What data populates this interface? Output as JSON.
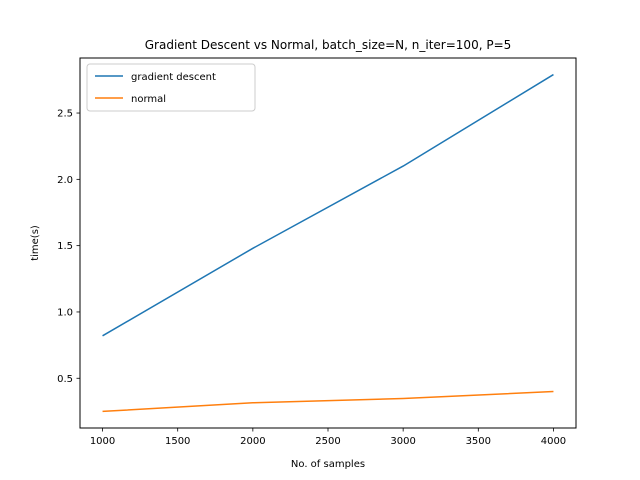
{
  "chart_data": {
    "type": "line",
    "title": "Gradient Descent vs Normal, batch_size=N, n_iter=100, P=5",
    "xlabel": "No. of samples",
    "ylabel": "time(s)",
    "x": [
      1000,
      2000,
      3000,
      4000
    ],
    "xlim": [
      850,
      4150
    ],
    "ylim": [
      0.125,
      2.915
    ],
    "xticks": [
      1000,
      1500,
      2000,
      2500,
      3000,
      3500,
      4000
    ],
    "xtick_labels": [
      "1000",
      "1500",
      "2000",
      "2500",
      "3000",
      "3500",
      "4000"
    ],
    "yticks": [
      0.5,
      1.0,
      1.5,
      2.0,
      2.5
    ],
    "ytick_labels": [
      "0.5",
      "1.0",
      "1.5",
      "2.0",
      "2.5"
    ],
    "grid": false,
    "legend_position": "upper-left",
    "series": [
      {
        "name": "gradient descent",
        "color": "#1f77b4",
        "values": [
          0.82,
          1.48,
          2.1,
          2.79
        ]
      },
      {
        "name": "normal",
        "color": "#ff7f0e",
        "values": [
          0.25,
          0.315,
          0.347,
          0.4
        ]
      }
    ]
  }
}
